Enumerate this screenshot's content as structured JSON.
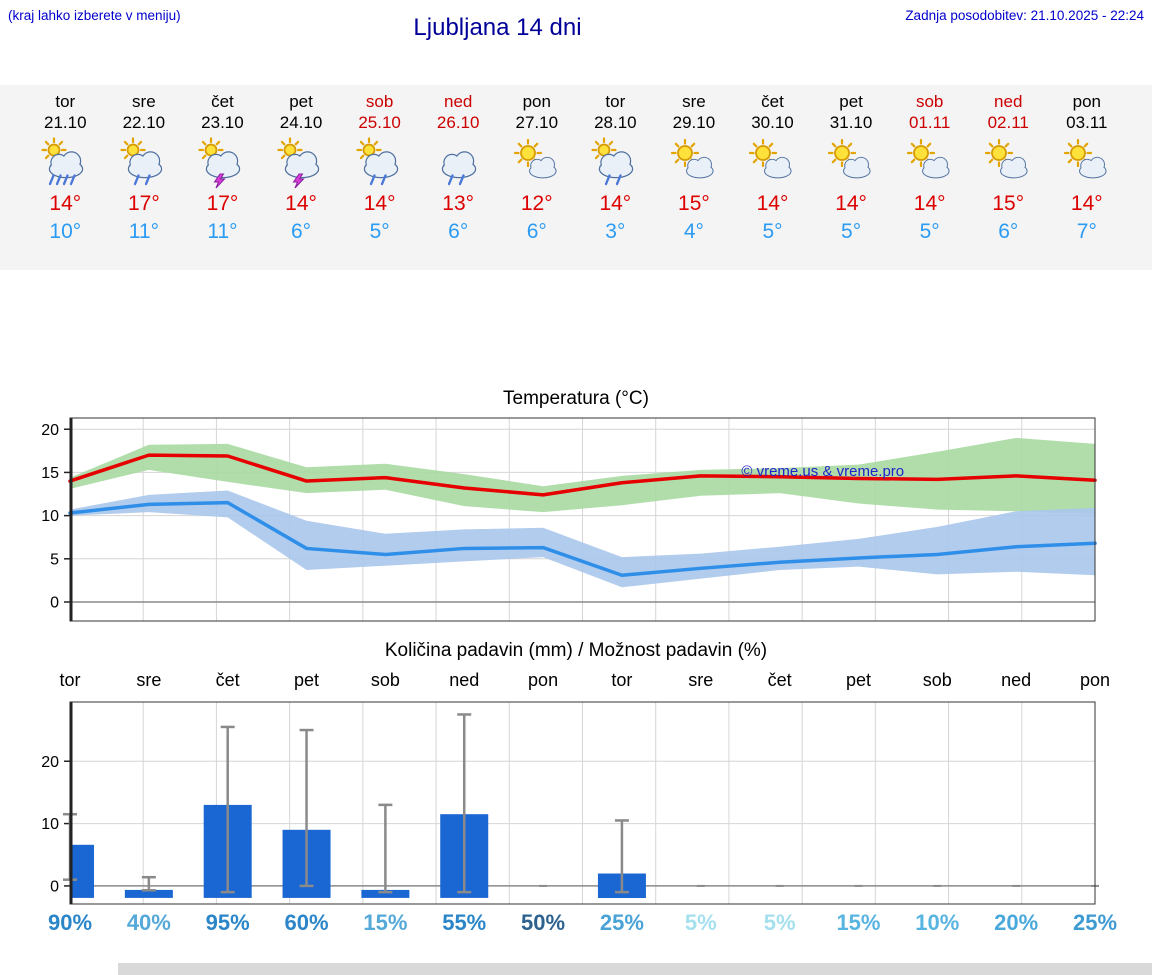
{
  "header": {
    "menu_note": "(kraj lahko izberete v meniju)",
    "title": "Ljubljana 14 dni",
    "last_update": "Zadnja posodobitev: 21.10.2025 - 22:24"
  },
  "colors": {
    "header_text": "#0000cc",
    "title_text": "#000099",
    "weekday_text": "#000000",
    "weekend_text": "#cc0000",
    "temp_max": "#dd0000",
    "temp_min": "#2b9bf4",
    "strip_background": "#f4f4f4"
  },
  "forecast": {
    "days": [
      {
        "day": "tor",
        "date": "21.10",
        "weekend": false,
        "icon": "sun-cloud-rain",
        "tmax": "14°",
        "tmin": "10°"
      },
      {
        "day": "sre",
        "date": "22.10",
        "weekend": false,
        "icon": "sun-cloud-showers",
        "tmax": "17°",
        "tmin": "11°"
      },
      {
        "day": "čet",
        "date": "23.10",
        "weekend": false,
        "icon": "sun-cloud-thunder",
        "tmax": "17°",
        "tmin": "11°"
      },
      {
        "day": "pet",
        "date": "24.10",
        "weekend": false,
        "icon": "sun-cloud-thunder",
        "tmax": "14°",
        "tmin": "6°"
      },
      {
        "day": "sob",
        "date": "25.10",
        "weekend": true,
        "icon": "sun-cloud-showers",
        "tmax": "14°",
        "tmin": "5°"
      },
      {
        "day": "ned",
        "date": "26.10",
        "weekend": true,
        "icon": "cloud-rain",
        "tmax": "13°",
        "tmin": "6°"
      },
      {
        "day": "pon",
        "date": "27.10",
        "weekend": false,
        "icon": "sun-cloud",
        "tmax": "12°",
        "tmin": "6°"
      },
      {
        "day": "tor",
        "date": "28.10",
        "weekend": false,
        "icon": "sun-cloud-showers",
        "tmax": "14°",
        "tmin": "3°"
      },
      {
        "day": "sre",
        "date": "29.10",
        "weekend": false,
        "icon": "sun-cloud",
        "tmax": "15°",
        "tmin": "4°"
      },
      {
        "day": "čet",
        "date": "30.10",
        "weekend": false,
        "icon": "sun-cloud",
        "tmax": "14°",
        "tmin": "5°"
      },
      {
        "day": "pet",
        "date": "31.10",
        "weekend": false,
        "icon": "sun-cloud",
        "tmax": "14°",
        "tmin": "5°"
      },
      {
        "day": "sob",
        "date": "01.11",
        "weekend": true,
        "icon": "sun-small-cloud",
        "tmax": "14°",
        "tmin": "5°"
      },
      {
        "day": "ned",
        "date": "02.11",
        "weekend": true,
        "icon": "sun-cloud",
        "tmax": "15°",
        "tmin": "6°"
      },
      {
        "day": "pon",
        "date": "03.11",
        "weekend": false,
        "icon": "sun-cloud",
        "tmax": "14°",
        "tmin": "7°"
      }
    ]
  },
  "chart_data": [
    {
      "type": "line",
      "title": "Temperatura (°C)",
      "watermark": "© vreme.us & vreme.pro",
      "watermark_color": "#2222cc",
      "categories": [
        "tor",
        "sre",
        "čet",
        "pet",
        "sob",
        "ned",
        "pon",
        "tor",
        "sre",
        "čet",
        "pet",
        "sob",
        "ned",
        "pon"
      ],
      "yticks": [
        0,
        5,
        10,
        15,
        20
      ],
      "ylim": [
        -2.2,
        21.3
      ],
      "grid": true,
      "series": [
        {
          "name": "max-temp",
          "color": "#e60000",
          "values": [
            14,
            17,
            16.9,
            14,
            14.4,
            13.2,
            12.4,
            13.8,
            14.6,
            14.5,
            14.3,
            14.2,
            14.6,
            14.1
          ]
        },
        {
          "name": "min-temp",
          "color": "#2f8fe8",
          "values": [
            10.3,
            11.3,
            11.5,
            6.2,
            5.5,
            6.2,
            6.3,
            3.1,
            3.9,
            4.6,
            5.1,
            5.5,
            6.4,
            6.8
          ]
        }
      ],
      "bands": [
        {
          "name": "max-temp-range",
          "color": "#a8d9a2",
          "upper": [
            14.4,
            18.2,
            18.3,
            15.6,
            16.0,
            14.8,
            13.4,
            14.6,
            15.3,
            15.5,
            15.9,
            17.4,
            19.0,
            18.3
          ],
          "lower": [
            13.1,
            15.3,
            13.9,
            12.6,
            13.0,
            11.1,
            10.4,
            11.2,
            12.3,
            12.6,
            11.4,
            10.7,
            10.5,
            10.2
          ]
        },
        {
          "name": "min-temp-range",
          "color": "#aac7ec",
          "upper": [
            10.7,
            12.4,
            12.9,
            9.4,
            7.9,
            8.4,
            8.6,
            5.2,
            5.6,
            6.4,
            7.3,
            8.7,
            10.5,
            10.9
          ],
          "lower": [
            10.0,
            10.4,
            9.8,
            3.7,
            4.2,
            4.7,
            5.2,
            1.7,
            2.7,
            3.7,
            4.1,
            3.2,
            3.5,
            3.1
          ]
        }
      ]
    },
    {
      "type": "bar",
      "title": "Količina padavin (mm) / Možnost padavin (%)",
      "categories": [
        "tor",
        "sre",
        "čet",
        "pet",
        "sob",
        "ned",
        "pon",
        "tor",
        "sre",
        "čet",
        "pet",
        "sob",
        "ned",
        "pon"
      ],
      "yticks": [
        0,
        10,
        20
      ],
      "ylim": [
        -2.9,
        29.5
      ],
      "grid": true,
      "bar_color": "#1a66d2",
      "whisker_color": "#8a8a8a",
      "precip_mm": [
        6.6,
        0.3,
        13,
        9,
        0.3,
        11.5,
        0,
        2,
        0,
        0,
        0,
        0,
        0,
        0
      ],
      "whisker_max": [
        11.5,
        1.4,
        25.5,
        25,
        13,
        27.5,
        0,
        10.5,
        0,
        0,
        0,
        0,
        0,
        0
      ],
      "whisker_min": [
        1,
        -0.7,
        -1,
        0,
        -1,
        -1,
        0,
        -1,
        0,
        0,
        0,
        0,
        0,
        0
      ],
      "prob_percent": [
        {
          "label": "90%",
          "color": "#2a86c8"
        },
        {
          "label": "40%",
          "color": "#55a9d9"
        },
        {
          "label": "95%",
          "color": "#2a86c8"
        },
        {
          "label": "60%",
          "color": "#2a86c8"
        },
        {
          "label": "15%",
          "color": "#55a9d9"
        },
        {
          "label": "55%",
          "color": "#2a86c8"
        },
        {
          "label": "50%",
          "color": "#2d628f"
        },
        {
          "label": "25%",
          "color": "#4aa3d6"
        },
        {
          "label": "5%",
          "color": "#a5e0ef"
        },
        {
          "label": "5%",
          "color": "#a5e0ef"
        },
        {
          "label": "15%",
          "color": "#58b4e0"
        },
        {
          "label": "10%",
          "color": "#58b4e0"
        },
        {
          "label": "20%",
          "color": "#4aa9dc"
        },
        {
          "label": "25%",
          "color": "#3d9bd2"
        }
      ]
    }
  ]
}
